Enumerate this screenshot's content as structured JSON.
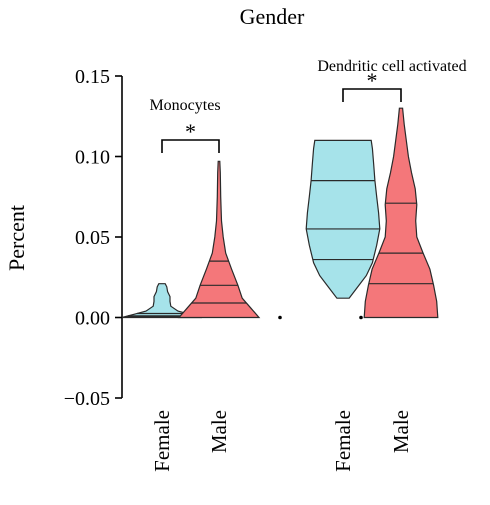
{
  "chart_data": {
    "type": "violin",
    "title": "Gender",
    "ylabel": "Percent",
    "xlabel": "",
    "ylim": [
      -0.05,
      0.15
    ],
    "yticks": [
      -0.05,
      0.0,
      0.05,
      0.1,
      0.15
    ],
    "ytick_labels": [
      "−0.05",
      "0.00",
      "0.05",
      "0.10",
      "0.15"
    ],
    "grid": false,
    "colors": {
      "Female": "#a6e3ea",
      "Male": "#f4777a",
      "outline": "#2a2a2a"
    },
    "categories": [
      "Female",
      "Male",
      "Female",
      "Male"
    ],
    "groups": [
      {
        "label": "Monocytes",
        "significance": "*",
        "violins": [
          {
            "sex": "Female",
            "min": 0.0,
            "max": 0.021,
            "quartiles": [
              0.0005,
              0.001,
              0.0025
            ],
            "profile": [
              [
                0.0,
                1.0
              ],
              [
                0.002,
                0.7
              ],
              [
                0.004,
                0.4
              ],
              [
                0.007,
                0.22
              ],
              [
                0.01,
                0.2
              ],
              [
                0.013,
                0.2
              ],
              [
                0.016,
                0.14
              ],
              [
                0.019,
                0.12
              ],
              [
                0.021,
                0.08
              ]
            ]
          },
          {
            "sex": "Male",
            "min": 0.0,
            "max": 0.097,
            "quartiles": [
              0.009,
              0.02,
              0.035
            ],
            "profile": [
              [
                0.0,
                0.95
              ],
              [
                0.006,
                0.75
              ],
              [
                0.012,
                0.55
              ],
              [
                0.02,
                0.45
              ],
              [
                0.03,
                0.3
              ],
              [
                0.04,
                0.16
              ],
              [
                0.05,
                0.1
              ],
              [
                0.06,
                0.06
              ],
              [
                0.075,
                0.04
              ],
              [
                0.09,
                0.03
              ],
              [
                0.097,
                0.02
              ]
            ]
          }
        ]
      },
      {
        "label": "Dendritic cell activated",
        "significance": "*",
        "violins": [
          {
            "sex": "Female",
            "min": 0.012,
            "max": 0.11,
            "quartiles": [
              0.036,
              0.055,
              0.085
            ],
            "profile": [
              [
                0.012,
                0.1
              ],
              [
                0.018,
                0.22
              ],
              [
                0.026,
                0.38
              ],
              [
                0.034,
                0.48
              ],
              [
                0.045,
                0.55
              ],
              [
                0.055,
                0.6
              ],
              [
                0.065,
                0.58
              ],
              [
                0.075,
                0.55
              ],
              [
                0.085,
                0.52
              ],
              [
                0.095,
                0.5
              ],
              [
                0.105,
                0.48
              ],
              [
                0.11,
                0.46
              ]
            ]
          },
          {
            "sex": "Male",
            "min": 0.0,
            "max": 0.13,
            "quartiles": [
              0.021,
              0.04,
              0.071
            ],
            "profile": [
              [
                0.0,
                0.7
              ],
              [
                0.01,
                0.68
              ],
              [
                0.02,
                0.62
              ],
              [
                0.03,
                0.55
              ],
              [
                0.04,
                0.42
              ],
              [
                0.05,
                0.3
              ],
              [
                0.06,
                0.28
              ],
              [
                0.07,
                0.3
              ],
              [
                0.08,
                0.27
              ],
              [
                0.09,
                0.2
              ],
              [
                0.1,
                0.14
              ],
              [
                0.11,
                0.1
              ],
              [
                0.12,
                0.06
              ],
              [
                0.13,
                0.03
              ]
            ]
          }
        ]
      }
    ],
    "extra_points": [
      {
        "position": 3,
        "y": 0.0
      },
      {
        "position": 4.4,
        "y": 0.0
      }
    ]
  }
}
